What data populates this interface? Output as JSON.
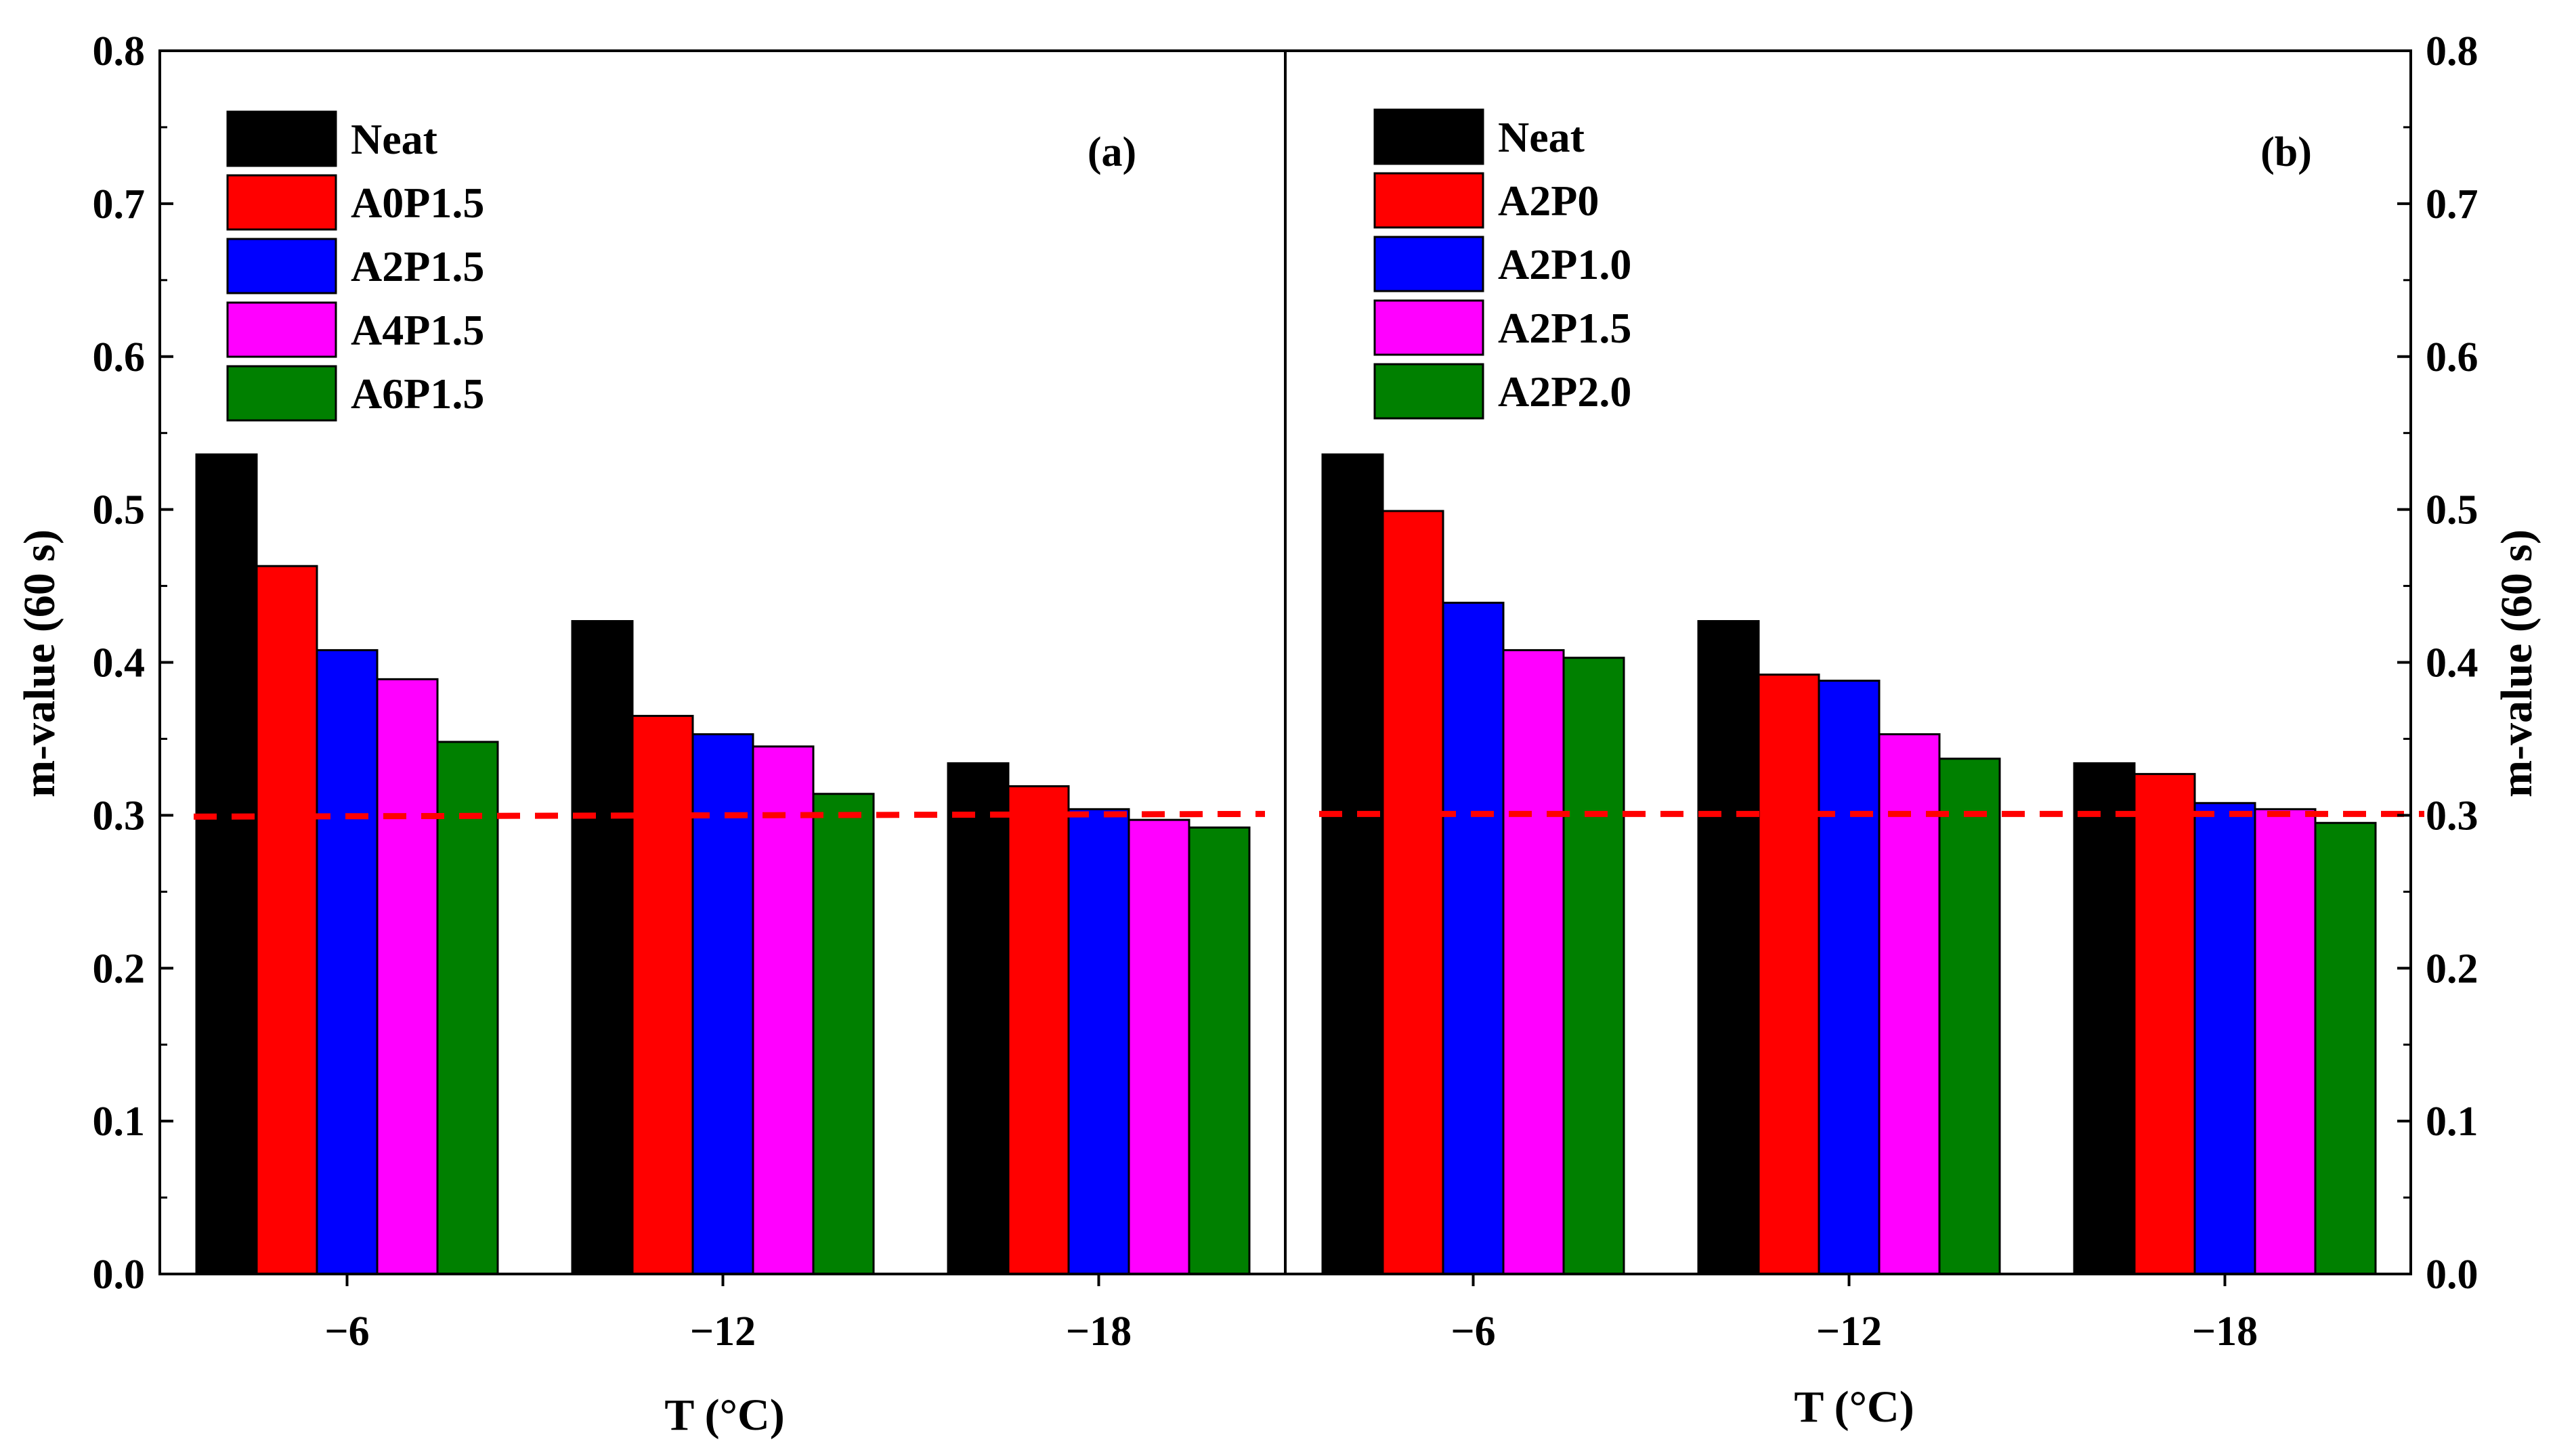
{
  "chart_data": {
    "type": "bar",
    "xlabel": "T (°C)",
    "ylabel": "m-value (60 s)",
    "ylim": [
      0,
      0.8
    ],
    "yticks": [
      "0.0",
      "0.1",
      "0.2",
      "0.3",
      "0.4",
      "0.5",
      "0.6",
      "0.7",
      "0.8"
    ],
    "reference_line": {
      "value": 0.3,
      "style": "dashed",
      "color": "#ff0000"
    },
    "series_colors": [
      "#000000",
      "#ff0000",
      "#0000ff",
      "#ff00ff",
      "#008000"
    ],
    "panels": [
      {
        "label": "(a)",
        "categories": [
          "−6",
          "−12",
          "−18"
        ],
        "series": [
          {
            "name": "Neat",
            "values": [
              0.536,
              0.427,
              0.334
            ]
          },
          {
            "name": "A0P1.5",
            "values": [
              0.463,
              0.365,
              0.319
            ]
          },
          {
            "name": "A2P1.5",
            "values": [
              0.408,
              0.353,
              0.304
            ]
          },
          {
            "name": "A4P1.5",
            "values": [
              0.389,
              0.345,
              0.297
            ]
          },
          {
            "name": "A6P1.5",
            "values": [
              0.348,
              0.314,
              0.292
            ]
          }
        ]
      },
      {
        "label": "(b)",
        "categories": [
          "−6",
          "−12",
          "−18"
        ],
        "series": [
          {
            "name": "Neat",
            "values": [
              0.536,
              0.427,
              0.334
            ]
          },
          {
            "name": "A2P0",
            "values": [
              0.499,
              0.392,
              0.327
            ]
          },
          {
            "name": "A2P1.0",
            "values": [
              0.439,
              0.388,
              0.308
            ]
          },
          {
            "name": "A2P1.5",
            "values": [
              0.408,
              0.353,
              0.304
            ]
          },
          {
            "name": "A2P2.0",
            "values": [
              0.403,
              0.337,
              0.295
            ]
          }
        ]
      }
    ]
  }
}
